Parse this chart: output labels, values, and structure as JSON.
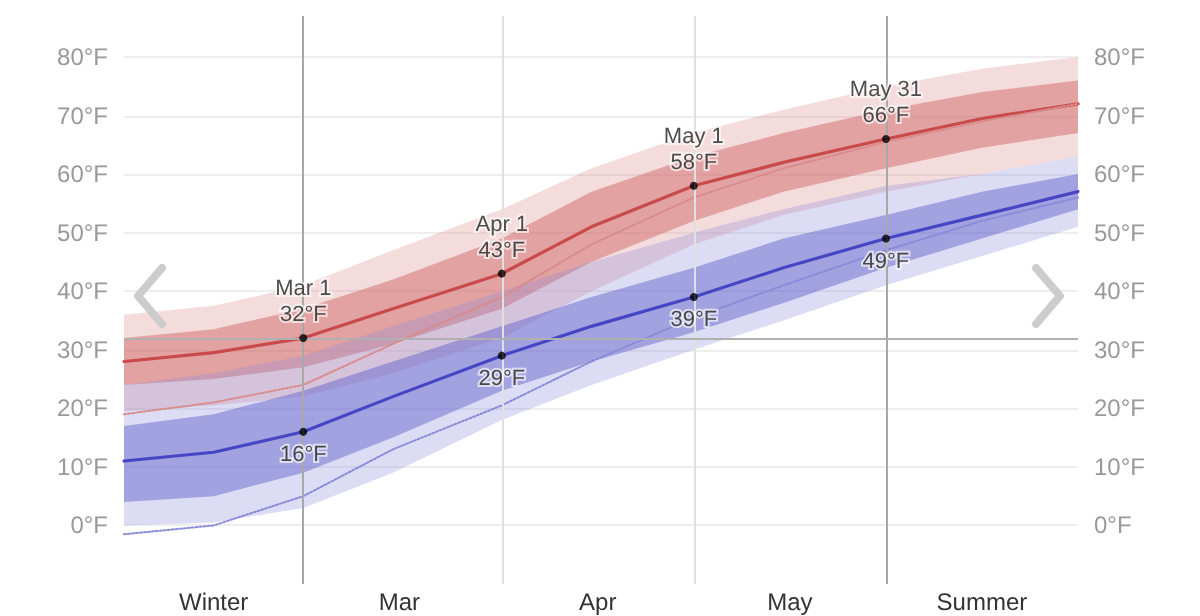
{
  "chart_data": {
    "type": "line",
    "x": [
      "--02-01",
      "--02-15",
      "--03-01",
      "--03-15",
      "--04-01",
      "--04-15",
      "--05-01",
      "--05-15",
      "--05-31",
      "--06-15",
      "--06-30"
    ],
    "series": [
      {
        "color": "#c84a4a",
        "line_style": "solid",
        "values": [
          28,
          29.5,
          32,
          37,
          43,
          51,
          58,
          62,
          66,
          69.5,
          72
        ],
        "lower": [
          24,
          25,
          27,
          31,
          37,
          45,
          52,
          57,
          61,
          64.5,
          67
        ],
        "upper": [
          32,
          33.5,
          37,
          42,
          49,
          57,
          63,
          67,
          71,
          74,
          76
        ]
      },
      {
        "color": "#d98a8a",
        "line_style": "dotted",
        "values": [
          19,
          21,
          24,
          31,
          39,
          48,
          56,
          61,
          65.5,
          69,
          72
        ],
        "lower": [
          19.5,
          20.5,
          22,
          26,
          32,
          40,
          48,
          53,
          57,
          60,
          63
        ],
        "upper": [
          36,
          37.5,
          41,
          47,
          54,
          61,
          67,
          71,
          75,
          78,
          80
        ]
      },
      {
        "color": "#4646c4",
        "line_style": "solid",
        "values": [
          11,
          12.5,
          16,
          22,
          29,
          34,
          39,
          44,
          49,
          53,
          57
        ],
        "lower": [
          4,
          5,
          9,
          15,
          23,
          28,
          33,
          38,
          44,
          49,
          54
        ],
        "upper": [
          17,
          19,
          23,
          28,
          34,
          39,
          44,
          49,
          53,
          57,
          60
        ]
      },
      {
        "color": "#8a8ad9",
        "line_style": "dotted",
        "values": [
          -1.5,
          0,
          5,
          13,
          20.5,
          28,
          35.5,
          41,
          47,
          52,
          56
        ],
        "lower": [
          0,
          0.5,
          3,
          9,
          18,
          24,
          30,
          35,
          41,
          46,
          51
        ],
        "upper": [
          24,
          26,
          29,
          34,
          40,
          45,
          50,
          54,
          58,
          60,
          63
        ]
      }
    ],
    "xlim": [
      "--02-01",
      "--06-30"
    ],
    "xticks": [
      {
        "value": "--02-15",
        "label": "Winter"
      },
      {
        "value": "--03-16",
        "label": "Mar"
      },
      {
        "value": "--04-16",
        "label": "Apr"
      },
      {
        "value": "--05-16",
        "label": "May"
      },
      {
        "value": "--06-15",
        "label": "Summer"
      }
    ],
    "ylim": [
      -10,
      87
    ],
    "yticks": [
      {
        "value": 0,
        "label": "0°F"
      },
      {
        "value": 10,
        "label": "10°F"
      },
      {
        "value": 20,
        "label": "20°F"
      },
      {
        "value": 30,
        "label": "30°F"
      },
      {
        "value": 40,
        "label": "40°F"
      },
      {
        "value": 50,
        "label": "50°F"
      },
      {
        "value": 60,
        "label": "60°F"
      },
      {
        "value": 70,
        "label": "70°F"
      },
      {
        "value": 80,
        "label": "80°F"
      }
    ],
    "y2lim": [
      -10,
      87
    ],
    "y2ticks": [
      {
        "value": 0,
        "label": "0°F"
      },
      {
        "value": 10,
        "label": "10°F"
      },
      {
        "value": 20,
        "label": "20°F"
      },
      {
        "value": 30,
        "label": "30°F"
      },
      {
        "value": 40,
        "label": "40°F"
      },
      {
        "value": 50,
        "label": "50°F"
      },
      {
        "value": 60,
        "label": "60°F"
      },
      {
        "value": 70,
        "label": "70°F"
      },
      {
        "value": 80,
        "label": "80°F"
      }
    ],
    "grid": "y",
    "ref_lines": [
      {
        "axis": "x",
        "value": "--03-01",
        "color": "#a8a8a8"
      },
      {
        "axis": "x",
        "value": "--04-01",
        "color": "#e0e0e0"
      },
      {
        "axis": "x",
        "value": "--05-01",
        "color": "#e0e0e0"
      },
      {
        "axis": "x",
        "value": "--05-31",
        "color": "#a8a8a8"
      },
      {
        "axis": "y",
        "value": 32,
        "color": "#b0b0b0"
      }
    ],
    "annotations": [
      {
        "text": "Mar 1",
        "x": "--03-01",
        "y": 32
      },
      {
        "text": "32°F",
        "x": "--03-01",
        "y": 32
      },
      {
        "text": "16°F",
        "x": "--03-01",
        "y": 16
      },
      {
        "text": "Apr 1",
        "x": "--04-01",
        "y": 43
      },
      {
        "text": "43°F",
        "x": "--04-01",
        "y": 43
      },
      {
        "text": "29°F",
        "x": "--04-01",
        "y": 29
      },
      {
        "text": "May 1",
        "x": "--05-01",
        "y": 58
      },
      {
        "text": "58°F",
        "x": "--05-01",
        "y": 58
      },
      {
        "text": "39°F",
        "x": "--05-01",
        "y": 39
      },
      {
        "text": "May 31",
        "x": "--05-31",
        "y": 66
      },
      {
        "text": "66°F",
        "x": "--05-31",
        "y": 66
      },
      {
        "text": "49°F",
        "x": "--05-31",
        "y": 49
      }
    ]
  }
}
